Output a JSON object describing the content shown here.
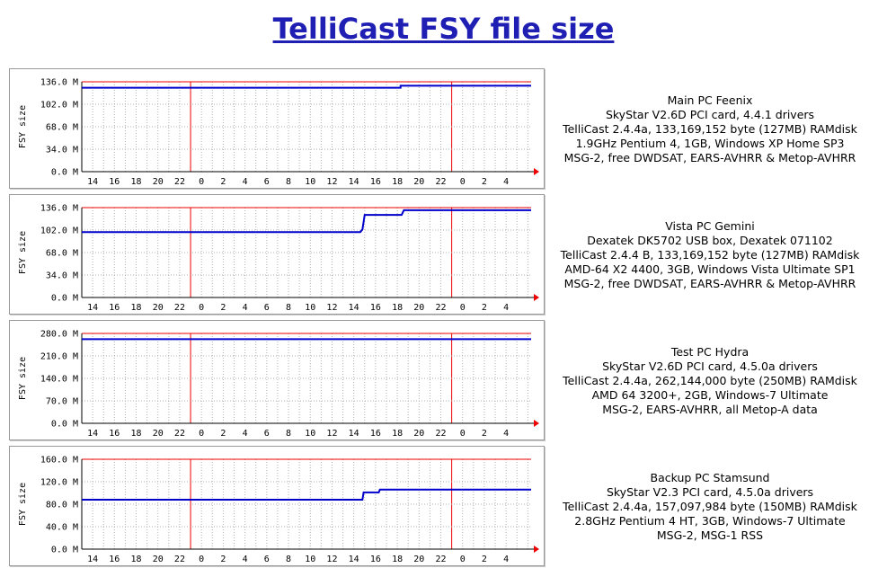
{
  "page": {
    "title": "TelliCast FSY file size"
  },
  "colors": {
    "line": "#0000cc",
    "midnight": "#ee0000",
    "grid": "#b0b0b0",
    "arrow": "#ee0000"
  },
  "chart_data": [
    {
      "type": "line",
      "ylabel": "FSY size",
      "ylim": [
        0,
        136
      ],
      "yticks": [
        "136.0 M",
        "102.0 M",
        "68.0 M",
        "34.0 M",
        "0.0 M"
      ],
      "xticks": [
        "14",
        "16",
        "18",
        "20",
        "22",
        "0",
        "2",
        "4",
        "6",
        "8",
        "10",
        "12",
        "14",
        "16",
        "18",
        "20",
        "22",
        "0",
        "2",
        "4"
      ],
      "series": [
        {
          "points": [
            [
              0,
              127
            ],
            [
              29.3,
              127
            ],
            [
              29.3,
              130
            ],
            [
              41.3,
              130
            ]
          ]
        }
      ],
      "description": [
        "Main PC Feenix",
        "SkyStar V2.6D PCI card, 4.4.1 drivers",
        "TelliCast 2.4.4a, 133,169,152 byte (127MB) RAMdisk",
        "1.9GHz Pentium 4, 1GB, Windows XP Home SP3",
        "MSG-2, free DWDSAT, EARS-AVHRR & Metop-AVHRR"
      ]
    },
    {
      "type": "line",
      "ylabel": "FSY size",
      "ylim": [
        0,
        136
      ],
      "yticks": [
        "136.0 M",
        "102.0 M",
        "68.0 M",
        "34.0 M",
        "0.0 M"
      ],
      "xticks": [
        "14",
        "16",
        "18",
        "20",
        "22",
        "0",
        "2",
        "4",
        "6",
        "8",
        "10",
        "12",
        "14",
        "16",
        "18",
        "20",
        "22",
        "0",
        "2",
        "4"
      ],
      "series": [
        {
          "points": [
            [
              0,
              99
            ],
            [
              25.6,
              99
            ],
            [
              25.8,
              103
            ],
            [
              26.0,
              125
            ],
            [
              29.4,
              125
            ],
            [
              29.6,
              132
            ],
            [
              41.3,
              132
            ]
          ]
        }
      ],
      "description": [
        "Vista PC Gemini",
        "Dexatek DK5702 USB box, Dexatek 071102",
        "TelliCast 2.4.4 B, 133,169,152 byte (127MB) RAMdisk",
        "AMD-64 X2 4400, 3GB, Windows Vista Ultimate SP1",
        "MSG-2, free DWDSAT, EARS-AVHRR & Metop-AVHRR"
      ]
    },
    {
      "type": "line",
      "ylabel": "FSY size",
      "ylim": [
        0,
        280
      ],
      "yticks": [
        "280.0 M",
        "210.0 M",
        "140.0 M",
        "70.0 M",
        "0.0 M"
      ],
      "xticks": [
        "14",
        "16",
        "18",
        "20",
        "22",
        "0",
        "2",
        "4",
        "6",
        "8",
        "10",
        "12",
        "14",
        "16",
        "18",
        "20",
        "22",
        "0",
        "2",
        "4"
      ],
      "series": [
        {
          "points": [
            [
              0,
              262
            ],
            [
              41.3,
              262
            ]
          ]
        }
      ],
      "description": [
        "Test PC Hydra",
        "SkyStar V2.6D PCI card, 4.5.0a drivers",
        "TelliCast 2.4.4a, 262,144,000 byte (250MB) RAMdisk",
        "AMD 64 3200+, 2GB, Windows-7 Ultimate",
        "MSG-2, EARS-AVHRR, all Metop-A data"
      ]
    },
    {
      "type": "line",
      "ylabel": "FSY size",
      "ylim": [
        0,
        160
      ],
      "yticks": [
        "160.0 M",
        "120.0 M",
        "80.0 M",
        "40.0 M",
        "0.0 M"
      ],
      "xticks": [
        "14",
        "16",
        "18",
        "20",
        "22",
        "0",
        "2",
        "4",
        "6",
        "8",
        "10",
        "12",
        "14",
        "16",
        "18",
        "20",
        "22",
        "0",
        "2",
        "4"
      ],
      "series": [
        {
          "points": [
            [
              0,
              88
            ],
            [
              25.8,
              88
            ],
            [
              25.9,
              101
            ],
            [
              27.3,
              101
            ],
            [
              27.4,
              106
            ],
            [
              41.3,
              106
            ]
          ]
        }
      ],
      "description": [
        "Backup PC Stamsund",
        "SkyStar V2.3 PCI card, 4.5.0a drivers",
        "TelliCast 2.4.4a, 157,097,984 byte (150MB) RAMdisk",
        "2.8GHz Pentium 4 HT, 3GB, Windows-7 Ultimate",
        "MSG-2, MSG-1 RSS"
      ]
    }
  ]
}
